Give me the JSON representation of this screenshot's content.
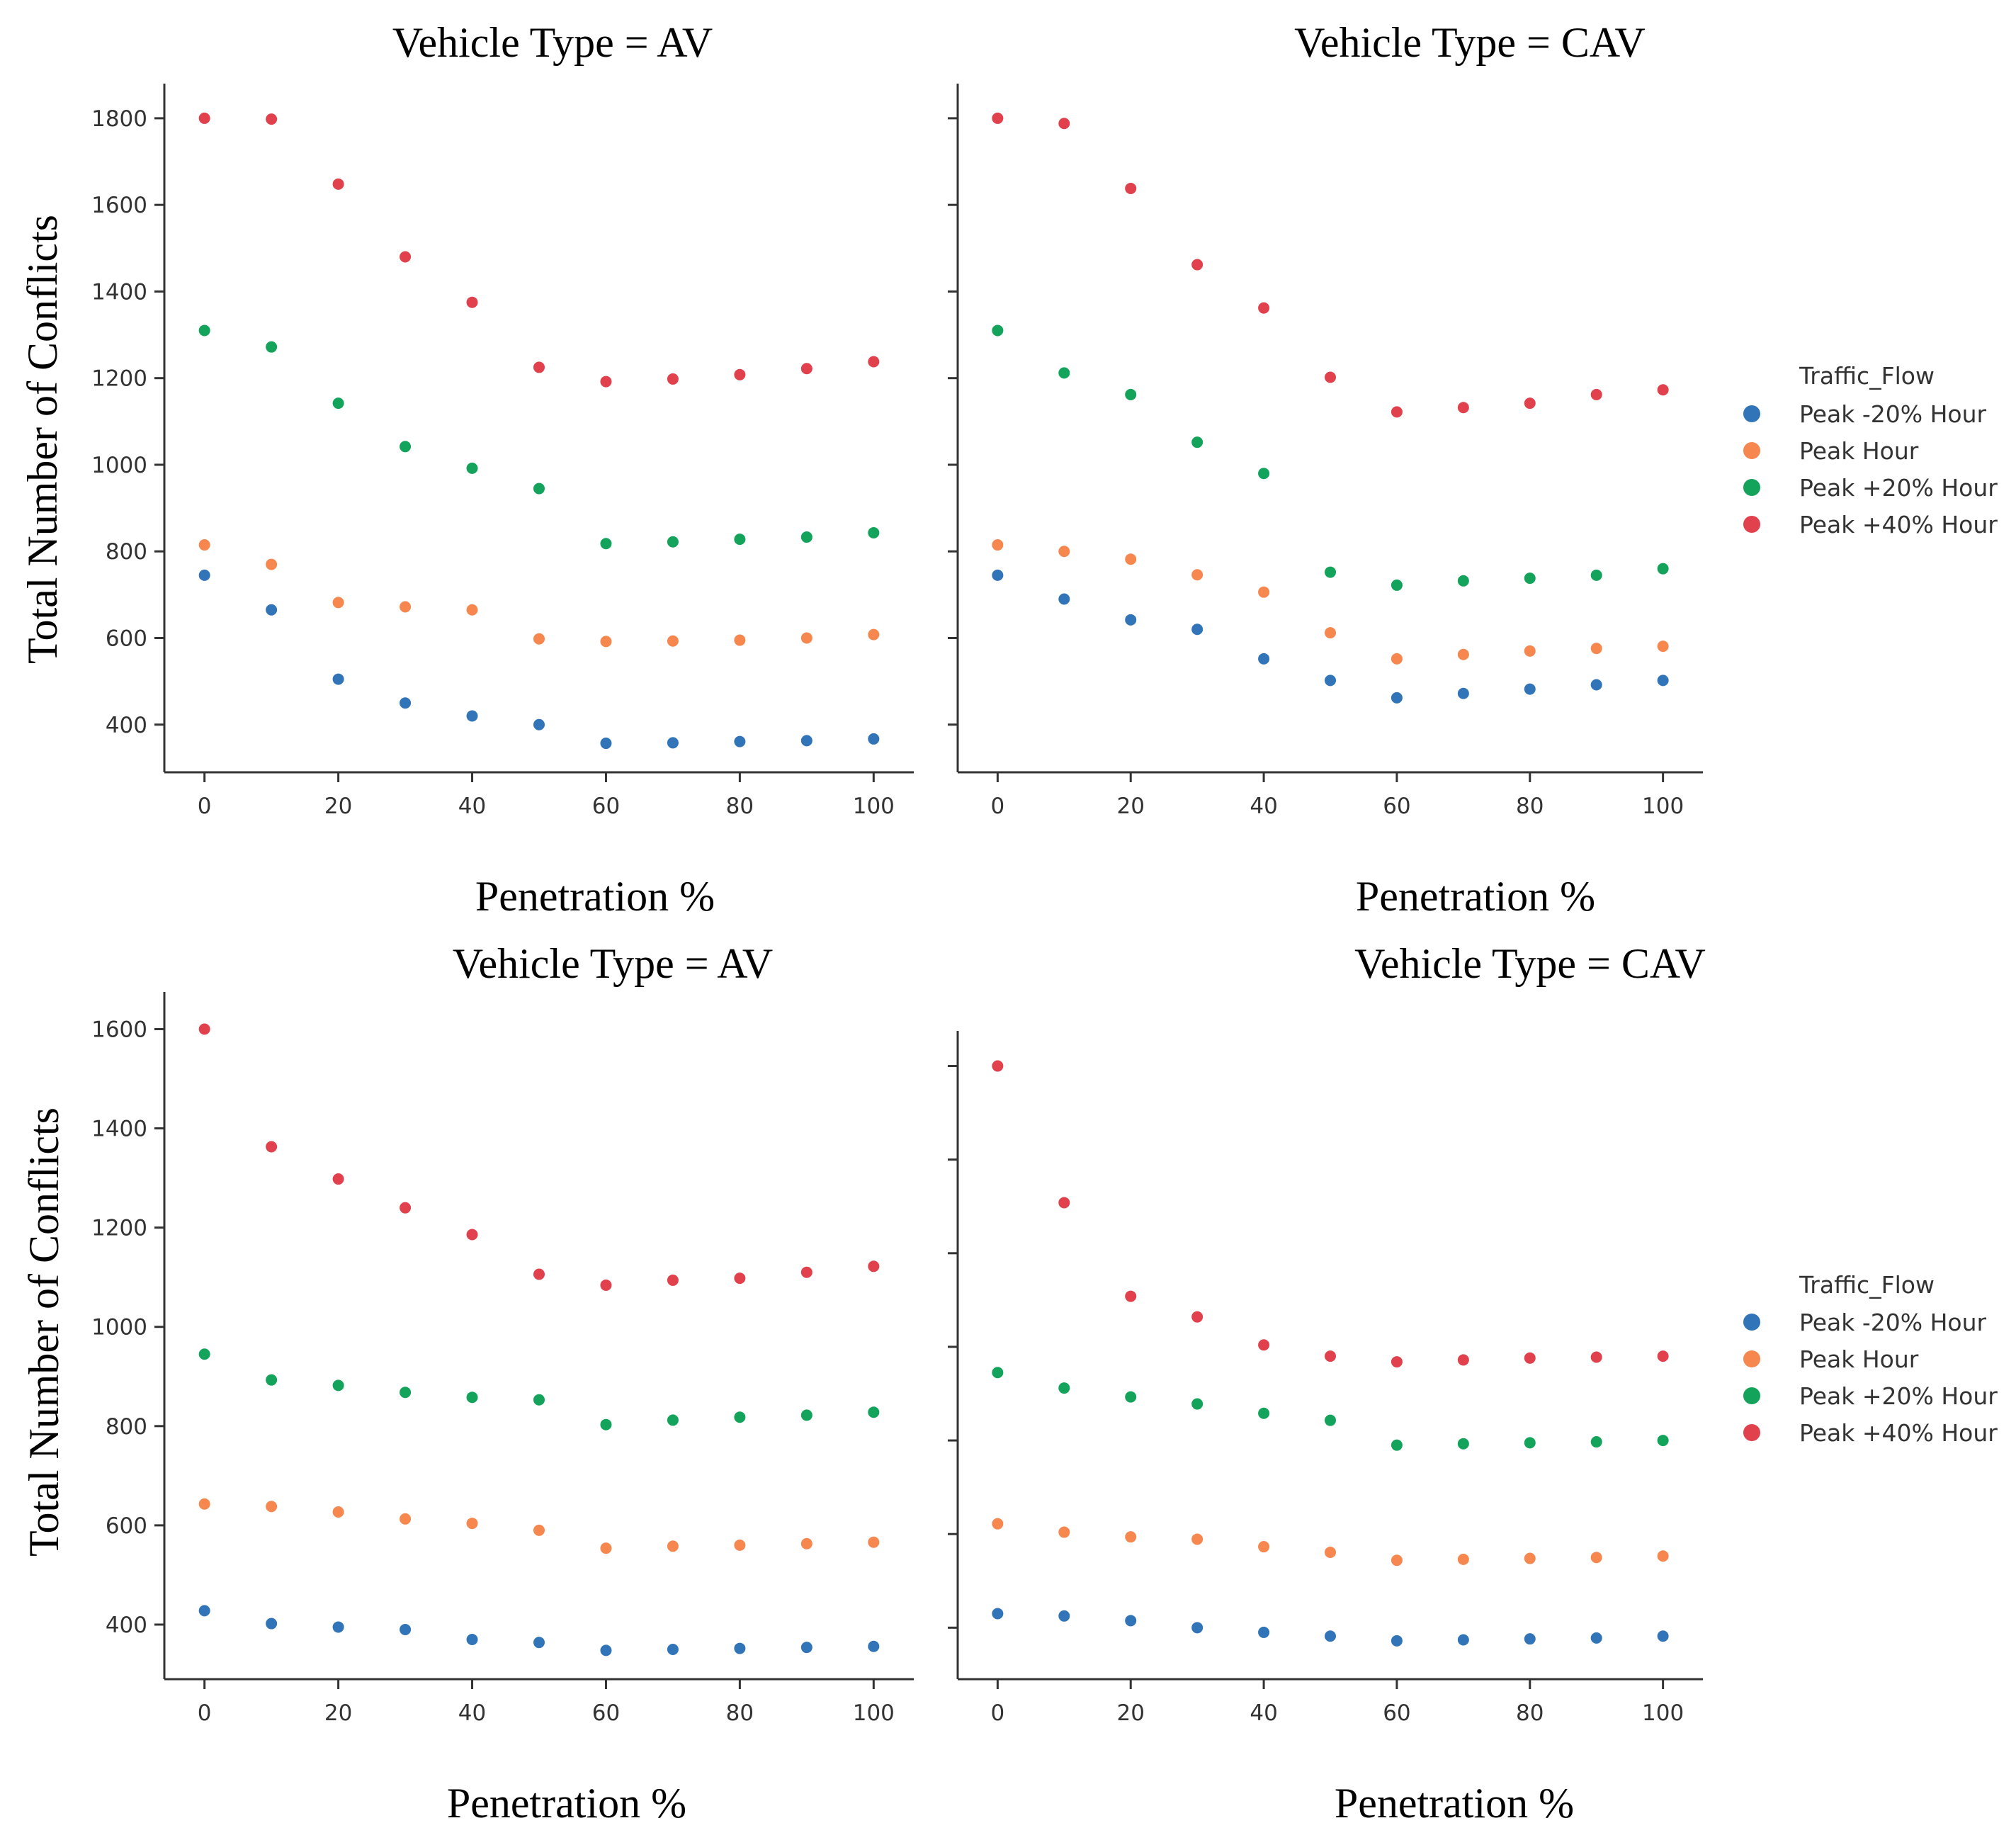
{
  "colors": {
    "Peak -20% Hour": "#3274b8",
    "Peak Hour": "#f5874f",
    "Peak +20% Hour": "#13a35a",
    "Peak +40% Hour": "#e0414d"
  },
  "legend": {
    "title": "Traffic_Flow",
    "entries": [
      "Peak -20% Hour",
      "Peak Hour",
      "Peak +20% Hour",
      "Peak +40% Hour"
    ]
  },
  "chart_data": [
    {
      "type": "scatter",
      "title": "Vehicle Type = AV",
      "xlabel": "Penetration %",
      "ylabel": "Total Number of Conflicts",
      "xlim": [
        -6,
        106
      ],
      "ylim": [
        290,
        1880
      ],
      "xticks": [
        0,
        20,
        40,
        60,
        80,
        100
      ],
      "yticks": [
        400,
        600,
        800,
        1000,
        1200,
        1400,
        1600,
        1800
      ],
      "ytick_labels": [
        "400",
        "600",
        "800",
        "1000",
        "1200",
        "1400",
        "1600",
        "1800"
      ],
      "x": [
        0,
        10,
        20,
        30,
        40,
        50,
        60,
        70,
        80,
        90,
        100
      ],
      "series": [
        {
          "name": "Peak -20% Hour",
          "values": [
            745,
            665,
            505,
            450,
            420,
            400,
            357,
            358,
            361,
            363,
            367
          ]
        },
        {
          "name": "Peak Hour",
          "values": [
            815,
            770,
            682,
            672,
            665,
            598,
            592,
            593,
            595,
            600,
            608
          ]
        },
        {
          "name": "Peak +20% Hour",
          "values": [
            1310,
            1272,
            1142,
            1042,
            992,
            945,
            818,
            822,
            828,
            833,
            843
          ]
        },
        {
          "name": "Peak +40% Hour",
          "values": [
            1800,
            1798,
            1648,
            1480,
            1375,
            1225,
            1192,
            1198,
            1208,
            1222,
            1238
          ]
        }
      ]
    },
    {
      "type": "scatter",
      "title": "Vehicle Type = CAV",
      "xlabel": "Penetration %",
      "ylabel": "",
      "xlim": [
        -6,
        106
      ],
      "ylim": [
        290,
        1880
      ],
      "xticks": [
        0,
        20,
        40,
        60,
        80,
        100
      ],
      "yticks": [
        400,
        600,
        800,
        1000,
        1200,
        1400,
        1600,
        1800
      ],
      "ytick_labels": [
        "",
        "",
        "",
        "",
        "",
        "",
        "",
        ""
      ],
      "x": [
        0,
        10,
        20,
        30,
        40,
        50,
        60,
        70,
        80,
        90,
        100
      ],
      "series": [
        {
          "name": "Peak -20% Hour",
          "values": [
            745,
            690,
            642,
            620,
            552,
            502,
            462,
            472,
            482,
            492,
            502
          ]
        },
        {
          "name": "Peak Hour",
          "values": [
            815,
            800,
            782,
            746,
            706,
            612,
            552,
            562,
            570,
            576,
            581
          ]
        },
        {
          "name": "Peak +20% Hour",
          "values": [
            1310,
            1212,
            1162,
            1052,
            980,
            752,
            722,
            732,
            738,
            745,
            760
          ]
        },
        {
          "name": "Peak +40% Hour",
          "values": [
            1800,
            1788,
            1638,
            1462,
            1362,
            1202,
            1122,
            1132,
            1142,
            1162,
            1173
          ]
        }
      ]
    },
    {
      "type": "scatter",
      "title": "Vehicle Type = AV",
      "xlabel": "Penetration %",
      "ylabel": "Total Number of Conflicts",
      "xlim": [
        -6,
        106
      ],
      "ylim": [
        290,
        1675
      ],
      "xticks": [
        0,
        20,
        40,
        60,
        80,
        100
      ],
      "yticks": [
        400,
        600,
        800,
        1000,
        1200,
        1400,
        1600
      ],
      "ytick_labels": [
        "400",
        "600",
        "800",
        "1000",
        "1200",
        "1400",
        "1600"
      ],
      "x": [
        0,
        10,
        20,
        30,
        40,
        50,
        60,
        70,
        80,
        90,
        100
      ],
      "series": [
        {
          "name": "Peak -20% Hour",
          "values": [
            428,
            402,
            395,
            390,
            370,
            364,
            348,
            350,
            352,
            354,
            356
          ]
        },
        {
          "name": "Peak Hour",
          "values": [
            643,
            638,
            627,
            613,
            604,
            590,
            554,
            558,
            560,
            563,
            566
          ]
        },
        {
          "name": "Peak +20% Hour",
          "values": [
            945,
            893,
            882,
            868,
            858,
            853,
            803,
            812,
            818,
            822,
            828
          ]
        },
        {
          "name": "Peak +40% Hour",
          "values": [
            1600,
            1363,
            1298,
            1240,
            1186,
            1106,
            1084,
            1094,
            1098,
            1110,
            1122
          ]
        }
      ]
    },
    {
      "type": "scatter",
      "title": "Vehicle Type = CAV",
      "xlabel": "Penetration %",
      "ylabel": "",
      "xlim": [
        -6,
        106
      ],
      "ylim": [
        290,
        1675
      ],
      "xticks": [
        0,
        20,
        40,
        60,
        80,
        100
      ],
      "yticks": [
        400,
        600,
        800,
        1000,
        1200,
        1400,
        1600
      ],
      "ytick_labels": [
        "",
        "",
        "",
        "",
        "",
        "",
        ""
      ],
      "x": [
        0,
        10,
        20,
        30,
        40,
        50,
        60,
        70,
        80,
        90,
        100
      ],
      "series": [
        {
          "name": "Peak -20% Hour",
          "values": [
            430,
            425,
            415,
            400,
            390,
            382,
            372,
            374,
            376,
            378,
            382
          ]
        },
        {
          "name": "Peak Hour",
          "values": [
            622,
            604,
            594,
            589,
            573,
            561,
            544,
            546,
            548,
            550,
            553
          ]
        },
        {
          "name": "Peak +20% Hour",
          "values": [
            945,
            912,
            893,
            878,
            858,
            843,
            790,
            793,
            795,
            797,
            800
          ]
        },
        {
          "name": "Peak +40% Hour",
          "values": [
            1600,
            1308,
            1108,
            1064,
            1004,
            980,
            968,
            972,
            976,
            978,
            980
          ]
        }
      ]
    }
  ]
}
